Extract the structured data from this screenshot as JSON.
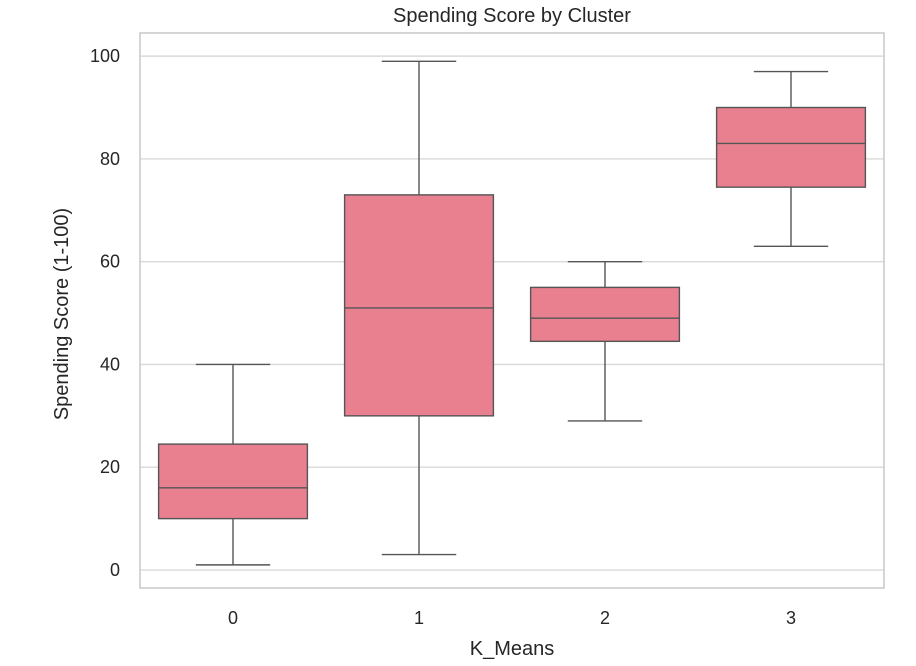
{
  "chart_data": {
    "type": "box",
    "title": "Spending Score by Cluster",
    "xlabel": "K_Means",
    "ylabel": "Spending Score (1-100)",
    "ylim": [
      -3.5,
      104.5
    ],
    "yticks": [
      0,
      20,
      40,
      60,
      80,
      100
    ],
    "grid": true,
    "box_color": "#e8808f",
    "categories": [
      "0",
      "1",
      "2",
      "3"
    ],
    "boxes": [
      {
        "category": "0",
        "whisker_low": 1,
        "q1": 10,
        "median": 16,
        "q3": 24.5,
        "whisker_high": 40
      },
      {
        "category": "1",
        "whisker_low": 3,
        "q1": 30,
        "median": 51,
        "q3": 73,
        "whisker_high": 99
      },
      {
        "category": "2",
        "whisker_low": 29,
        "q1": 44.5,
        "median": 49,
        "q3": 55,
        "whisker_high": 60
      },
      {
        "category": "3",
        "whisker_low": 63,
        "q1": 74.5,
        "median": 83,
        "q3": 90,
        "whisker_high": 97
      }
    ]
  }
}
